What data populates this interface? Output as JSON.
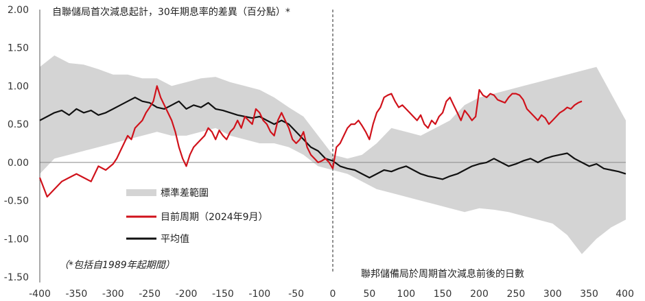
{
  "chart_data": {
    "type": "line",
    "title": "自聯儲局首次減息起計，30年期息率的差異（百分點）*",
    "xlabel": "聯邦儲備局於周期首次減息前後的日數",
    "footnote": "（*包括自1989年起期間）",
    "xlim": [
      -400,
      400
    ],
    "ylim": [
      -1.5,
      2.0
    ],
    "x_ticks": [
      -400,
      -350,
      -300,
      -250,
      -200,
      -150,
      -100,
      -50,
      0,
      50,
      100,
      150,
      200,
      250,
      300,
      350,
      400
    ],
    "x_tick_labels": [
      "-400",
      "-350",
      "-300",
      "-250",
      "-200",
      "-150",
      "-100",
      "-50",
      "0",
      "50",
      "100",
      "150",
      "200",
      "250",
      "300",
      "350",
      "400"
    ],
    "y_ticks": [
      -1.5,
      -1.0,
      -0.5,
      0.0,
      0.5,
      1.0,
      1.5,
      2.0
    ],
    "y_tick_labels": [
      "-1.50",
      "-1.00",
      "-0.50",
      "0.00",
      "0.50",
      "1.00",
      "1.50",
      "2.00"
    ],
    "band": {
      "name": "標準差範圍",
      "color": "#d4d4d4",
      "x": [
        -400,
        -380,
        -360,
        -340,
        -320,
        -300,
        -280,
        -260,
        -240,
        -220,
        -200,
        -180,
        -160,
        -140,
        -120,
        -100,
        -80,
        -60,
        -40,
        -20,
        0,
        20,
        40,
        60,
        80,
        100,
        120,
        140,
        160,
        180,
        200,
        220,
        240,
        260,
        280,
        300,
        320,
        340,
        360,
        380,
        400
      ],
      "upper": [
        1.25,
        1.4,
        1.3,
        1.28,
        1.22,
        1.15,
        1.15,
        1.1,
        1.1,
        1.0,
        1.05,
        1.1,
        1.12,
        1.05,
        1.0,
        0.95,
        0.85,
        0.72,
        0.6,
        0.35,
        0.1,
        0.05,
        0.1,
        0.25,
        0.45,
        0.4,
        0.35,
        0.45,
        0.55,
        0.75,
        0.85,
        0.9,
        0.95,
        1.0,
        1.05,
        1.1,
        1.15,
        1.2,
        1.25,
        0.9,
        0.55
      ],
      "lower": [
        -0.15,
        0.05,
        0.1,
        0.15,
        0.2,
        0.25,
        0.3,
        0.35,
        0.4,
        0.35,
        0.35,
        0.4,
        0.45,
        0.35,
        0.3,
        0.25,
        0.25,
        0.2,
        0.1,
        -0.05,
        -0.1,
        -0.15,
        -0.25,
        -0.35,
        -0.4,
        -0.45,
        -0.5,
        -0.55,
        -0.6,
        -0.65,
        -0.6,
        -0.62,
        -0.65,
        -0.7,
        -0.75,
        -0.8,
        -0.95,
        -1.2,
        -1.0,
        -0.85,
        -0.75
      ]
    },
    "series": [
      {
        "name": "目前周期（2024年9月）",
        "color": "#d0121b",
        "x": [
          -400,
          -390,
          -380,
          -370,
          -360,
          -350,
          -340,
          -330,
          -320,
          -310,
          -300,
          -295,
          -290,
          -280,
          -275,
          -270,
          -265,
          -260,
          -255,
          -250,
          -245,
          -240,
          -235,
          -230,
          -225,
          -220,
          -215,
          -210,
          -205,
          -200,
          -195,
          -190,
          -185,
          -180,
          -175,
          -170,
          -165,
          -160,
          -155,
          -150,
          -145,
          -140,
          -135,
          -130,
          -125,
          -120,
          -115,
          -110,
          -105,
          -100,
          -95,
          -90,
          -85,
          -80,
          -75,
          -70,
          -65,
          -60,
          -55,
          -50,
          -45,
          -40,
          -35,
          -30,
          -25,
          -20,
          -15,
          -10,
          -5,
          0,
          5,
          10,
          15,
          20,
          25,
          30,
          35,
          40,
          45,
          50,
          55,
          60,
          65,
          70,
          75,
          80,
          85,
          90,
          95,
          100,
          105,
          110,
          115,
          120,
          125,
          130,
          135,
          140,
          145,
          150,
          155,
          160,
          165,
          170,
          175,
          180,
          185,
          190,
          195,
          200,
          205,
          210,
          215,
          220,
          225,
          230,
          235,
          240,
          245,
          250,
          255,
          260,
          265,
          270,
          275,
          280,
          285,
          290,
          295,
          300,
          305,
          310,
          315,
          320,
          325,
          330,
          335,
          340
        ],
        "values": [
          -0.2,
          -0.45,
          -0.35,
          -0.25,
          -0.2,
          -0.15,
          -0.2,
          -0.25,
          -0.05,
          -0.1,
          -0.02,
          0.05,
          0.15,
          0.35,
          0.3,
          0.45,
          0.5,
          0.55,
          0.65,
          0.72,
          0.8,
          1.0,
          0.85,
          0.75,
          0.65,
          0.55,
          0.4,
          0.2,
          0.05,
          -0.05,
          0.1,
          0.2,
          0.25,
          0.3,
          0.35,
          0.45,
          0.4,
          0.3,
          0.42,
          0.35,
          0.3,
          0.4,
          0.45,
          0.55,
          0.45,
          0.6,
          0.55,
          0.5,
          0.7,
          0.65,
          0.55,
          0.5,
          0.4,
          0.35,
          0.55,
          0.65,
          0.55,
          0.45,
          0.3,
          0.25,
          0.3,
          0.4,
          0.2,
          0.1,
          0.05,
          0.0,
          0.02,
          0.05,
          0.0,
          -0.08,
          0.2,
          0.25,
          0.35,
          0.45,
          0.5,
          0.5,
          0.55,
          0.48,
          0.4,
          0.3,
          0.5,
          0.65,
          0.72,
          0.85,
          0.88,
          0.9,
          0.8,
          0.72,
          0.75,
          0.7,
          0.65,
          0.6,
          0.55,
          0.62,
          0.5,
          0.45,
          0.55,
          0.5,
          0.6,
          0.65,
          0.8,
          0.85,
          0.75,
          0.65,
          0.55,
          0.68,
          0.62,
          0.55,
          0.6,
          0.95,
          0.88,
          0.85,
          0.9,
          0.88,
          0.82,
          0.8,
          0.78,
          0.85,
          0.9,
          0.9,
          0.88,
          0.82,
          0.7,
          0.65,
          0.6,
          0.55,
          0.62,
          0.58,
          0.5,
          0.55,
          0.6,
          0.65,
          0.68,
          0.72,
          0.7,
          0.75,
          0.78,
          0.8
        ]
      },
      {
        "name": "平均值",
        "color": "#111111",
        "x": [
          -400,
          -390,
          -380,
          -370,
          -360,
          -350,
          -340,
          -330,
          -320,
          -310,
          -300,
          -290,
          -280,
          -270,
          -260,
          -250,
          -240,
          -230,
          -220,
          -210,
          -200,
          -190,
          -180,
          -170,
          -160,
          -150,
          -140,
          -130,
          -120,
          -110,
          -100,
          -90,
          -80,
          -70,
          -60,
          -50,
          -40,
          -30,
          -20,
          -10,
          0,
          10,
          20,
          30,
          40,
          50,
          60,
          70,
          80,
          90,
          100,
          110,
          120,
          130,
          140,
          150,
          160,
          170,
          180,
          190,
          200,
          210,
          220,
          230,
          240,
          250,
          260,
          270,
          280,
          290,
          300,
          310,
          320,
          330,
          340,
          350,
          360,
          370,
          380,
          390,
          400
        ],
        "values": [
          0.55,
          0.6,
          0.65,
          0.68,
          0.62,
          0.7,
          0.65,
          0.68,
          0.62,
          0.65,
          0.7,
          0.75,
          0.8,
          0.85,
          0.8,
          0.78,
          0.72,
          0.7,
          0.75,
          0.8,
          0.7,
          0.75,
          0.72,
          0.78,
          0.7,
          0.68,
          0.65,
          0.62,
          0.6,
          0.58,
          0.6,
          0.55,
          0.5,
          0.55,
          0.5,
          0.4,
          0.3,
          0.2,
          0.15,
          0.05,
          0.02,
          -0.05,
          -0.08,
          -0.1,
          -0.15,
          -0.2,
          -0.15,
          -0.1,
          -0.12,
          -0.08,
          -0.05,
          -0.1,
          -0.15,
          -0.18,
          -0.2,
          -0.22,
          -0.18,
          -0.15,
          -0.1,
          -0.05,
          -0.02,
          0.0,
          0.05,
          0.0,
          -0.05,
          -0.02,
          0.02,
          0.05,
          0.0,
          0.05,
          0.08,
          0.1,
          0.12,
          0.05,
          0.0,
          -0.05,
          -0.02,
          -0.08,
          -0.1,
          -0.12,
          -0.15
        ]
      }
    ],
    "legend": {
      "placement": "lower-left",
      "entries": [
        {
          "label": "標準差範圍",
          "marker": "band",
          "color": "#d4d4d4"
        },
        {
          "label": "目前周期（2024年9月）",
          "marker": "line",
          "color": "#d0121b"
        },
        {
          "label": "平均值",
          "marker": "line",
          "color": "#111111"
        }
      ]
    },
    "annotations": {
      "vertical_dashed_line_at_x": 0,
      "zero_line": true
    },
    "grid": false
  }
}
